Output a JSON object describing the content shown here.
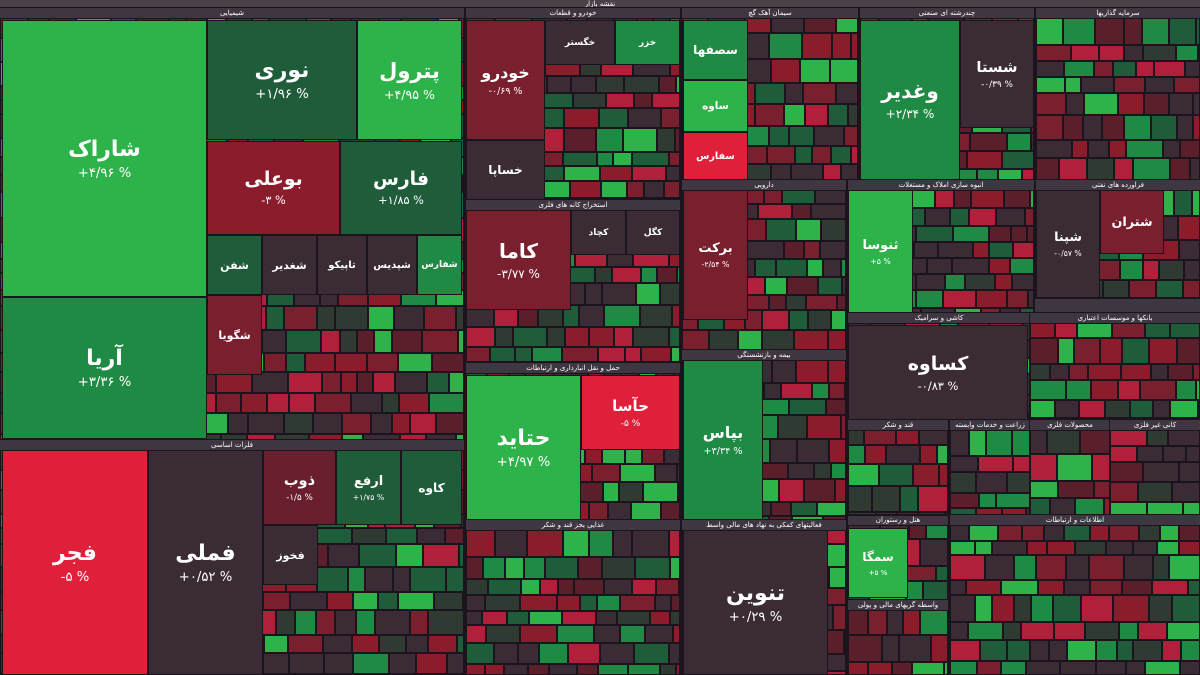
{
  "title": "نقشه بازار",
  "sectors": [
    {
      "label": "شیمیایی",
      "tiles": [
        {
          "name": "شاراک",
          "change": "+۴/۹۶ %",
          "color": "#2db34a"
        },
        {
          "name": "آریا",
          "change": "+۳/۳۶ %",
          "color": "#1f8a43"
        },
        {
          "name": "نوری",
          "change": "+۱/۹۶ %",
          "color": "#1e5c3a"
        },
        {
          "name": "پترول",
          "change": "+۴/۹۵ %",
          "color": "#2db34a"
        },
        {
          "name": "بوعلی",
          "change": "-۳ %",
          "color": "#8b1c2b"
        },
        {
          "name": "فارس",
          "change": "+۱/۸۵ %",
          "color": "#1e5c3a"
        },
        {
          "name": "شفن",
          "color": "#1e5c3a"
        },
        {
          "name": "شگویا",
          "color": "#7a1f2e"
        },
        {
          "name": "شغدیر",
          "color": "#3a2b35"
        },
        {
          "name": "تاپیکو",
          "color": "#3a2b35"
        },
        {
          "name": "شپدیس",
          "color": "#3a2b35"
        },
        {
          "name": "شفارس",
          "color": "#1f8a43"
        }
      ]
    },
    {
      "label": "خودرو و قطعات",
      "tiles": [
        {
          "name": "خودرو",
          "change": "-۰/۶۹ %",
          "color": "#7a1f2e"
        },
        {
          "name": "خگستر",
          "color": "#3a2b35"
        },
        {
          "name": "خزر",
          "color": "#1f8a43"
        },
        {
          "name": "خساپا",
          "color": "#3a2b35"
        }
      ]
    },
    {
      "label": "سیمان آهک گچ",
      "tiles": [
        {
          "name": "سصفها",
          "color": "#1f8a43"
        },
        {
          "name": "ساوه",
          "color": "#2db34a"
        },
        {
          "name": "سفارس",
          "color": "#e0203a"
        }
      ]
    },
    {
      "label": "چندرشته ای صنعتی",
      "tiles": [
        {
          "name": "وغدیر",
          "change": "+۲/۳۴ %",
          "color": "#1f8a43"
        },
        {
          "name": "شستا",
          "change": "-۰/۳۹ %",
          "color": "#3a2b35"
        }
      ]
    },
    {
      "label": "سرمایه گذاریها",
      "tiles": []
    },
    {
      "label": "استخراج کانه های فلزی",
      "tiles": [
        {
          "name": "کاما",
          "change": "-۳/۷۷ %",
          "color": "#7a1f2e"
        },
        {
          "name": "کچاد",
          "color": "#3a2b35"
        },
        {
          "name": "کگل",
          "color": "#3a2b35"
        }
      ]
    },
    {
      "label": "دارویی",
      "tiles": [
        {
          "name": "برکت",
          "change": "-۲/۵۴ %",
          "color": "#7a1f2e"
        }
      ]
    },
    {
      "label": "انبوه سازی املاک و مستغلات",
      "tiles": [
        {
          "name": "ثنوسا",
          "change": "+۵ %",
          "color": "#2db34a"
        }
      ]
    },
    {
      "label": "فراورده های نفتی",
      "tiles": [
        {
          "name": "شپنا",
          "change": "-۰/۵۷ %",
          "color": "#3a2b35"
        },
        {
          "name": "شتران",
          "color": "#7a1f2e"
        }
      ]
    },
    {
      "label": "فلزات اساسی",
      "tiles": [
        {
          "name": "فجر",
          "change": "-۵ %",
          "color": "#e0203a"
        },
        {
          "name": "فملی",
          "change": "+۰/۵۲ %",
          "color": "#3a2b35"
        },
        {
          "name": "ذوب",
          "change": "-۱/۵ %",
          "color": "#6a1f2e"
        },
        {
          "name": "ارفع",
          "change": "+۱/۷۵ %",
          "color": "#1e5c3a"
        },
        {
          "name": "کاوه",
          "color": "#1e5c3a"
        },
        {
          "name": "فخوز",
          "color": "#3a2b35"
        }
      ]
    },
    {
      "label": "حمل و نقل انبارداری و ارتباطات",
      "tiles": [
        {
          "name": "حتاید",
          "change": "+۴/۹۷ %",
          "color": "#2db34a"
        },
        {
          "name": "حآسا",
          "change": "-۵ %",
          "color": "#e0203a"
        }
      ]
    },
    {
      "label": "بیمه و بازنشستگی",
      "tiles": [
        {
          "name": "بپاس",
          "change": "+۳/۳۴ %",
          "color": "#1f8a43"
        }
      ]
    },
    {
      "label": "کاشی و سرامیک",
      "tiles": [
        {
          "name": "کساوه",
          "change": "-۰/۸۳ %",
          "color": "#3a2b35"
        }
      ]
    },
    {
      "label": "بانکها و موسسات اعتباری",
      "tiles": []
    },
    {
      "label": "غذایی بجز قند و شکر",
      "tiles": []
    },
    {
      "label": "فعالیتهای کمکی به نهاد های مالی واسط",
      "tiles": [
        {
          "name": "تنوین",
          "change": "+۰/۲۹ %",
          "color": "#3a2b35"
        }
      ]
    },
    {
      "label": "هتل و رستوران",
      "tiles": [
        {
          "name": "سمگا",
          "change": "+۵ %",
          "color": "#2db34a"
        }
      ]
    },
    {
      "label": "قند و شکر",
      "tiles": []
    },
    {
      "label": "زراعت و خدمات وابسته",
      "tiles": []
    },
    {
      "label": "محصولات فلزی",
      "tiles": []
    },
    {
      "label": "کانی غیر فلزی",
      "tiles": []
    },
    {
      "label": "واسطه گریهای مالی و پولی",
      "tiles": []
    },
    {
      "label": "اطلاعات و ارتباطات",
      "tiles": []
    }
  ]
}
